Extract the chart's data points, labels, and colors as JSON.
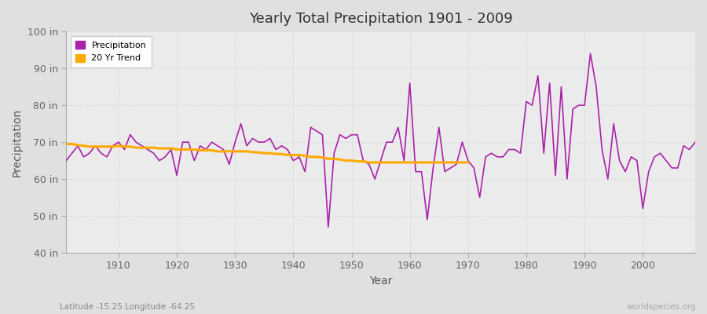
{
  "title": "Yearly Total Precipitation 1901 - 2009",
  "xlabel": "Year",
  "ylabel": "Precipitation",
  "precip_color": "#aa22aa",
  "trend_color": "#ffaa00",
  "bg_color": "#e0e0e0",
  "plot_bg_color": "#ebebeb",
  "ylim": [
    40,
    100
  ],
  "yticks": [
    40,
    50,
    60,
    70,
    80,
    90,
    100
  ],
  "ytick_labels": [
    "40 in",
    "50 in",
    "60 in",
    "70 in",
    "80 in",
    "90 in",
    "100 in"
  ],
  "xlim": [
    1901,
    2009
  ],
  "subtitle": "Latitude -15.25 Longitude -64.25",
  "watermark": "worldspecies.org",
  "years": [
    1901,
    1902,
    1903,
    1904,
    1905,
    1906,
    1907,
    1908,
    1909,
    1910,
    1911,
    1912,
    1913,
    1914,
    1915,
    1916,
    1917,
    1918,
    1919,
    1920,
    1921,
    1922,
    1923,
    1924,
    1925,
    1926,
    1927,
    1928,
    1929,
    1930,
    1931,
    1932,
    1933,
    1934,
    1935,
    1936,
    1937,
    1938,
    1939,
    1940,
    1941,
    1942,
    1943,
    1944,
    1945,
    1946,
    1947,
    1948,
    1949,
    1950,
    1951,
    1952,
    1953,
    1954,
    1955,
    1956,
    1957,
    1958,
    1959,
    1960,
    1961,
    1962,
    1963,
    1964,
    1965,
    1966,
    1967,
    1968,
    1969,
    1970,
    1971,
    1972,
    1973,
    1974,
    1975,
    1976,
    1977,
    1978,
    1979,
    1980,
    1981,
    1982,
    1983,
    1984,
    1985,
    1986,
    1987,
    1988,
    1989,
    1990,
    1991,
    1992,
    1993,
    1994,
    1995,
    1996,
    1997,
    1998,
    1999,
    2000,
    2001,
    2002,
    2003,
    2004,
    2005,
    2006,
    2007,
    2008,
    2009
  ],
  "precip": [
    65,
    67,
    69,
    66,
    67,
    69,
    67,
    66,
    69,
    70,
    68,
    72,
    70,
    69,
    68,
    67,
    65,
    66,
    68,
    61,
    70,
    70,
    65,
    69,
    68,
    70,
    69,
    68,
    64,
    70,
    75,
    69,
    71,
    70,
    70,
    71,
    68,
    69,
    68,
    65,
    66,
    62,
    74,
    73,
    72,
    47,
    67,
    72,
    71,
    72,
    72,
    65,
    64,
    60,
    65,
    70,
    70,
    74,
    65,
    86,
    62,
    62,
    49,
    63,
    74,
    62,
    63,
    64,
    70,
    65,
    63,
    55,
    66,
    67,
    66,
    66,
    68,
    68,
    67,
    81,
    80,
    88,
    67,
    86,
    61,
    85,
    60,
    79,
    80,
    80,
    94,
    85,
    68,
    60,
    75,
    65,
    62,
    66,
    65,
    52,
    62,
    66,
    67,
    65,
    63,
    63,
    69,
    68,
    70
  ],
  "trend_years": [
    1901,
    1902,
    1903,
    1904,
    1905,
    1906,
    1907,
    1908,
    1909,
    1910,
    1911,
    1912,
    1913,
    1914,
    1915,
    1916,
    1917,
    1918,
    1919,
    1920,
    1921,
    1922,
    1923,
    1924,
    1925,
    1926,
    1927,
    1928,
    1929,
    1930,
    1931,
    1932,
    1933,
    1934,
    1935,
    1936,
    1937,
    1938,
    1939,
    1940,
    1941,
    1942,
    1943,
    1944,
    1945,
    1946,
    1947,
    1948,
    1949,
    1950,
    1951,
    1952,
    1953,
    1954,
    1955,
    1956,
    1957,
    1958,
    1959,
    1960,
    1961,
    1962,
    1963,
    1964,
    1965,
    1966,
    1967,
    1968,
    1969,
    1970
  ],
  "trend": [
    69.5,
    69.5,
    69.2,
    69.0,
    68.8,
    68.8,
    68.8,
    68.8,
    68.8,
    69.0,
    68.8,
    68.8,
    68.5,
    68.5,
    68.5,
    68.5,
    68.3,
    68.3,
    68.3,
    68.0,
    68.0,
    68.0,
    68.0,
    67.8,
    67.8,
    67.8,
    67.5,
    67.5,
    67.5,
    67.5,
    67.5,
    67.5,
    67.3,
    67.2,
    67.0,
    67.0,
    66.8,
    66.8,
    66.5,
    66.5,
    66.5,
    66.3,
    66.0,
    66.0,
    65.8,
    65.5,
    65.5,
    65.3,
    65.0,
    65.0,
    64.8,
    64.8,
    64.5,
    64.5,
    64.5,
    64.5,
    64.5,
    64.5,
    64.5,
    64.5,
    64.5,
    64.5,
    64.5,
    64.5,
    64.5,
    64.5,
    64.5,
    64.5,
    64.5,
    64.5
  ]
}
